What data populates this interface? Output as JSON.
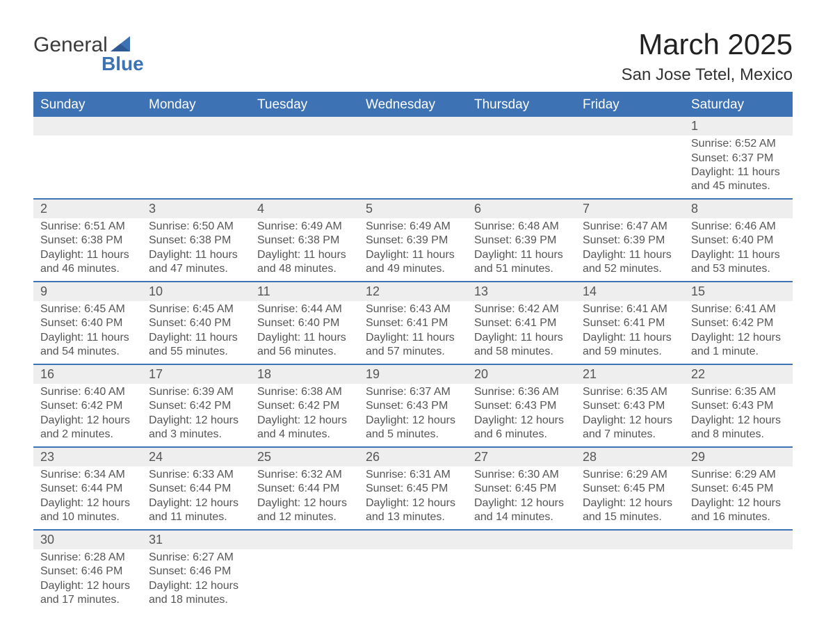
{
  "logo": {
    "word1": "General",
    "word2": "Blue"
  },
  "title": "March 2025",
  "location": "San Jose Tetel, Mexico",
  "colors": {
    "header_bg": "#3d72b4",
    "header_text": "#ffffff",
    "daynum_bg": "#eeeeee",
    "row_border": "#3d72b4",
    "body_text": "#555555",
    "page_bg": "#ffffff"
  },
  "typography": {
    "title_fontsize": 42,
    "location_fontsize": 24,
    "header_fontsize": 19,
    "daynum_fontsize": 18,
    "cell_fontsize": 16
  },
  "columns": [
    "Sunday",
    "Monday",
    "Tuesday",
    "Wednesday",
    "Thursday",
    "Friday",
    "Saturday"
  ],
  "weeks": [
    [
      null,
      null,
      null,
      null,
      null,
      null,
      {
        "n": "1",
        "sr": "Sunrise: 6:52 AM",
        "ss": "Sunset: 6:37 PM",
        "dl": "Daylight: 11 hours and 45 minutes."
      }
    ],
    [
      {
        "n": "2",
        "sr": "Sunrise: 6:51 AM",
        "ss": "Sunset: 6:38 PM",
        "dl": "Daylight: 11 hours and 46 minutes."
      },
      {
        "n": "3",
        "sr": "Sunrise: 6:50 AM",
        "ss": "Sunset: 6:38 PM",
        "dl": "Daylight: 11 hours and 47 minutes."
      },
      {
        "n": "4",
        "sr": "Sunrise: 6:49 AM",
        "ss": "Sunset: 6:38 PM",
        "dl": "Daylight: 11 hours and 48 minutes."
      },
      {
        "n": "5",
        "sr": "Sunrise: 6:49 AM",
        "ss": "Sunset: 6:39 PM",
        "dl": "Daylight: 11 hours and 49 minutes."
      },
      {
        "n": "6",
        "sr": "Sunrise: 6:48 AM",
        "ss": "Sunset: 6:39 PM",
        "dl": "Daylight: 11 hours and 51 minutes."
      },
      {
        "n": "7",
        "sr": "Sunrise: 6:47 AM",
        "ss": "Sunset: 6:39 PM",
        "dl": "Daylight: 11 hours and 52 minutes."
      },
      {
        "n": "8",
        "sr": "Sunrise: 6:46 AM",
        "ss": "Sunset: 6:40 PM",
        "dl": "Daylight: 11 hours and 53 minutes."
      }
    ],
    [
      {
        "n": "9",
        "sr": "Sunrise: 6:45 AM",
        "ss": "Sunset: 6:40 PM",
        "dl": "Daylight: 11 hours and 54 minutes."
      },
      {
        "n": "10",
        "sr": "Sunrise: 6:45 AM",
        "ss": "Sunset: 6:40 PM",
        "dl": "Daylight: 11 hours and 55 minutes."
      },
      {
        "n": "11",
        "sr": "Sunrise: 6:44 AM",
        "ss": "Sunset: 6:40 PM",
        "dl": "Daylight: 11 hours and 56 minutes."
      },
      {
        "n": "12",
        "sr": "Sunrise: 6:43 AM",
        "ss": "Sunset: 6:41 PM",
        "dl": "Daylight: 11 hours and 57 minutes."
      },
      {
        "n": "13",
        "sr": "Sunrise: 6:42 AM",
        "ss": "Sunset: 6:41 PM",
        "dl": "Daylight: 11 hours and 58 minutes."
      },
      {
        "n": "14",
        "sr": "Sunrise: 6:41 AM",
        "ss": "Sunset: 6:41 PM",
        "dl": "Daylight: 11 hours and 59 minutes."
      },
      {
        "n": "15",
        "sr": "Sunrise: 6:41 AM",
        "ss": "Sunset: 6:42 PM",
        "dl": "Daylight: 12 hours and 1 minute."
      }
    ],
    [
      {
        "n": "16",
        "sr": "Sunrise: 6:40 AM",
        "ss": "Sunset: 6:42 PM",
        "dl": "Daylight: 12 hours and 2 minutes."
      },
      {
        "n": "17",
        "sr": "Sunrise: 6:39 AM",
        "ss": "Sunset: 6:42 PM",
        "dl": "Daylight: 12 hours and 3 minutes."
      },
      {
        "n": "18",
        "sr": "Sunrise: 6:38 AM",
        "ss": "Sunset: 6:42 PM",
        "dl": "Daylight: 12 hours and 4 minutes."
      },
      {
        "n": "19",
        "sr": "Sunrise: 6:37 AM",
        "ss": "Sunset: 6:43 PM",
        "dl": "Daylight: 12 hours and 5 minutes."
      },
      {
        "n": "20",
        "sr": "Sunrise: 6:36 AM",
        "ss": "Sunset: 6:43 PM",
        "dl": "Daylight: 12 hours and 6 minutes."
      },
      {
        "n": "21",
        "sr": "Sunrise: 6:35 AM",
        "ss": "Sunset: 6:43 PM",
        "dl": "Daylight: 12 hours and 7 minutes."
      },
      {
        "n": "22",
        "sr": "Sunrise: 6:35 AM",
        "ss": "Sunset: 6:43 PM",
        "dl": "Daylight: 12 hours and 8 minutes."
      }
    ],
    [
      {
        "n": "23",
        "sr": "Sunrise: 6:34 AM",
        "ss": "Sunset: 6:44 PM",
        "dl": "Daylight: 12 hours and 10 minutes."
      },
      {
        "n": "24",
        "sr": "Sunrise: 6:33 AM",
        "ss": "Sunset: 6:44 PM",
        "dl": "Daylight: 12 hours and 11 minutes."
      },
      {
        "n": "25",
        "sr": "Sunrise: 6:32 AM",
        "ss": "Sunset: 6:44 PM",
        "dl": "Daylight: 12 hours and 12 minutes."
      },
      {
        "n": "26",
        "sr": "Sunrise: 6:31 AM",
        "ss": "Sunset: 6:45 PM",
        "dl": "Daylight: 12 hours and 13 minutes."
      },
      {
        "n": "27",
        "sr": "Sunrise: 6:30 AM",
        "ss": "Sunset: 6:45 PM",
        "dl": "Daylight: 12 hours and 14 minutes."
      },
      {
        "n": "28",
        "sr": "Sunrise: 6:29 AM",
        "ss": "Sunset: 6:45 PM",
        "dl": "Daylight: 12 hours and 15 minutes."
      },
      {
        "n": "29",
        "sr": "Sunrise: 6:29 AM",
        "ss": "Sunset: 6:45 PM",
        "dl": "Daylight: 12 hours and 16 minutes."
      }
    ],
    [
      {
        "n": "30",
        "sr": "Sunrise: 6:28 AM",
        "ss": "Sunset: 6:46 PM",
        "dl": "Daylight: 12 hours and 17 minutes."
      },
      {
        "n": "31",
        "sr": "Sunrise: 6:27 AM",
        "ss": "Sunset: 6:46 PM",
        "dl": "Daylight: 12 hours and 18 minutes."
      },
      null,
      null,
      null,
      null,
      null
    ]
  ]
}
